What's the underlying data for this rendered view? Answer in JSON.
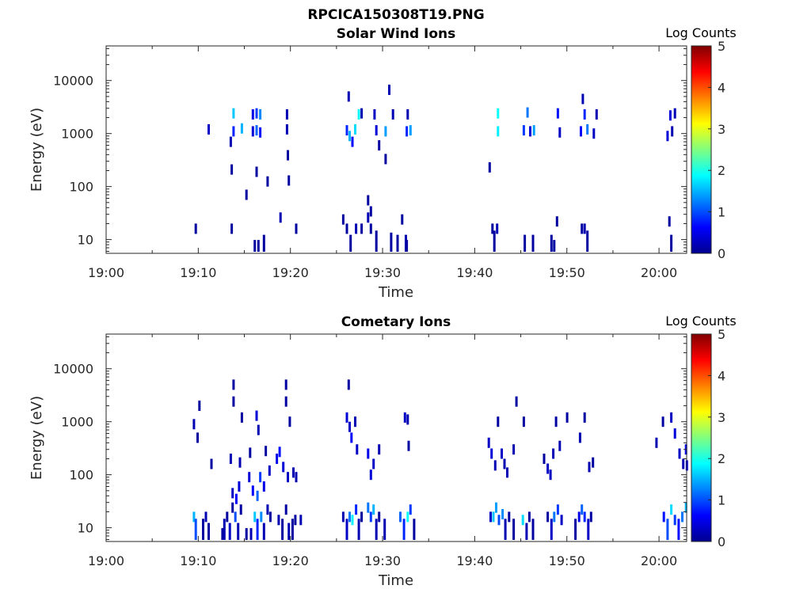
{
  "figure_title": "RPCICA150308T19.PNG",
  "colormap": [
    "#00008f",
    "#0000ff",
    "#0080ff",
    "#00ffff",
    "#80ff80",
    "#ffff00",
    "#ff8000",
    "#ff0000",
    "#800000"
  ],
  "chart_data": [
    {
      "type": "heatmap",
      "title": "Solar Wind Ions",
      "xlabel": "Time",
      "ylabel": "Energy (eV)",
      "yscale": "log",
      "xlim_minutes": [
        0,
        63
      ],
      "ylim": [
        5.5,
        45000
      ],
      "x_ticks": [
        {
          "label": "19:00",
          "m": 0
        },
        {
          "label": "19:10",
          "m": 10
        },
        {
          "label": "19:20",
          "m": 20
        },
        {
          "label": "19:30",
          "m": 30
        },
        {
          "label": "19:40",
          "m": 40
        },
        {
          "label": "19:50",
          "m": 50
        },
        {
          "label": "20:00",
          "m": 60
        }
      ],
      "y_ticks": [
        {
          "label": "10",
          "v": 10
        },
        {
          "label": "100",
          "v": 100
        },
        {
          "label": "1000",
          "v": 1000
        },
        {
          "label": "10000",
          "v": 10000
        }
      ],
      "colorbar": {
        "label": "Log Counts",
        "min": 0,
        "max": 5,
        "ticks": [
          "0",
          "1",
          "2",
          "3",
          "4",
          "5"
        ]
      },
      "cells": [
        [
          9.6,
          16,
          0.1
        ],
        [
          13.5,
          16,
          0.1
        ],
        [
          16,
          8,
          0.1
        ],
        [
          16.4,
          8,
          0.1
        ],
        [
          17,
          10,
          0.1
        ],
        [
          18.8,
          26,
          0.2
        ],
        [
          20.5,
          16,
          0.1
        ],
        [
          25.6,
          24,
          0.1
        ],
        [
          26,
          16,
          0.1
        ],
        [
          26.4,
          10,
          0.1
        ],
        [
          27,
          16,
          0.2
        ],
        [
          27.6,
          16,
          0.1
        ],
        [
          28.3,
          26,
          0.2
        ],
        [
          28.6,
          16,
          0.1
        ],
        [
          29.2,
          12,
          0.1
        ],
        [
          30.8,
          11,
          0.1
        ],
        [
          31.5,
          10,
          0.1
        ],
        [
          32,
          24,
          0.1
        ],
        [
          32.4,
          10,
          0.2
        ],
        [
          32.5,
          8,
          0.1
        ],
        [
          41.8,
          16,
          0.1
        ],
        [
          42,
          12,
          0.1
        ],
        [
          42.3,
          16,
          0.2
        ],
        [
          45.3,
          10,
          0.1
        ],
        [
          46.2,
          10,
          0.1
        ],
        [
          48.2,
          10,
          0.1
        ],
        [
          48.5,
          8,
          0.1
        ],
        [
          48.8,
          22,
          0.1
        ],
        [
          51.5,
          16,
          0.1
        ],
        [
          51.8,
          16,
          0.2
        ],
        [
          52.1,
          12,
          0.1
        ],
        [
          61,
          22,
          0.1
        ],
        [
          61.2,
          10,
          0.1
        ],
        [
          28.3,
          55,
          0.1
        ],
        [
          28.6,
          34,
          0.1
        ],
        [
          11,
          1200,
          0.3
        ],
        [
          13.4,
          700,
          0.2
        ],
        [
          13.7,
          1100,
          0.8
        ],
        [
          14.6,
          1250,
          1.5
        ],
        [
          15.8,
          1100,
          0.4
        ],
        [
          16.2,
          1150,
          1.1
        ],
        [
          16.6,
          1050,
          0.7
        ],
        [
          13.7,
          2400,
          1.6
        ],
        [
          15.8,
          2300,
          0.5
        ],
        [
          16.2,
          2400,
          0.9
        ],
        [
          16.6,
          2300,
          1.3
        ],
        [
          19.5,
          1200,
          0.2
        ],
        [
          19.5,
          2300,
          0.2
        ],
        [
          26,
          1150,
          0.8
        ],
        [
          26.3,
          900,
          1.5
        ],
        [
          26.6,
          700,
          0.6
        ],
        [
          26.9,
          1200,
          1.7
        ],
        [
          27.3,
          2300,
          1.9
        ],
        [
          29.2,
          1150,
          0.4
        ],
        [
          30.2,
          1100,
          1.4
        ],
        [
          31,
          2300,
          0.2
        ],
        [
          32.5,
          1100,
          0.8
        ],
        [
          32.9,
          1150,
          1.4
        ],
        [
          32.6,
          2300,
          0.2
        ],
        [
          26.2,
          5000,
          0.2
        ],
        [
          27.6,
          2400,
          0.2
        ],
        [
          30.6,
          6700,
          0.2
        ],
        [
          29,
          2300,
          0.3
        ],
        [
          42.4,
          1100,
          1.8
        ],
        [
          42.4,
          2400,
          1.9
        ],
        [
          45.2,
          1150,
          0.9
        ],
        [
          45.6,
          2500,
          1.2
        ],
        [
          45.9,
          1100,
          0.4
        ],
        [
          46.3,
          1150,
          1.4
        ],
        [
          48.9,
          2400,
          0.7
        ],
        [
          49.1,
          1050,
          0.3
        ],
        [
          51.4,
          1100,
          0.6
        ],
        [
          51.8,
          2300,
          0.8
        ],
        [
          52.1,
          1200,
          1.2
        ],
        [
          52.8,
          1000,
          0.3
        ],
        [
          53.1,
          2300,
          0.2
        ],
        [
          51.6,
          4500,
          0.2
        ],
        [
          60.8,
          900,
          0.4
        ],
        [
          61.3,
          1100,
          0.2
        ],
        [
          61.1,
          2200,
          0.4
        ],
        [
          61.6,
          2400,
          0.2
        ],
        [
          13.5,
          210,
          0.1
        ],
        [
          15.1,
          70,
          0.1
        ],
        [
          16.2,
          190,
          0.1
        ],
        [
          17.4,
          125,
          0.1
        ],
        [
          19.7,
          130,
          0.1
        ],
        [
          19.6,
          390,
          0.1
        ],
        [
          29.5,
          600,
          0.1
        ],
        [
          30.2,
          330,
          0.1
        ],
        [
          41.5,
          230,
          0.1
        ]
      ]
    },
    {
      "type": "heatmap",
      "title": "Cometary Ions",
      "xlabel": "Time",
      "ylabel": "Energy (eV)",
      "yscale": "log",
      "xlim_minutes": [
        0,
        63
      ],
      "ylim": [
        5.5,
        45000
      ],
      "x_ticks": [
        {
          "label": "19:00",
          "m": 0
        },
        {
          "label": "19:10",
          "m": 10
        },
        {
          "label": "19:20",
          "m": 20
        },
        {
          "label": "19:30",
          "m": 30
        },
        {
          "label": "19:40",
          "m": 40
        },
        {
          "label": "19:50",
          "m": 50
        },
        {
          "label": "20:00",
          "m": 60
        }
      ],
      "y_ticks": [
        {
          "label": "10",
          "v": 10
        },
        {
          "label": "100",
          "v": 100
        },
        {
          "label": "1000",
          "v": 1000
        },
        {
          "label": "10000",
          "v": 10000
        }
      ],
      "colorbar": {
        "label": "Log Counts",
        "min": 0,
        "max": 5,
        "ticks": [
          "0",
          "1",
          "2",
          "3",
          "4",
          "5"
        ]
      },
      "cells": [
        [
          9.4,
          16,
          1.5
        ],
        [
          9.6,
          12,
          1.0
        ],
        [
          10.4,
          12,
          0.1
        ],
        [
          10.7,
          16,
          0.2
        ],
        [
          11,
          10,
          0.1
        ],
        [
          12.5,
          8,
          0.1
        ],
        [
          12.7,
          12,
          0.2
        ],
        [
          13,
          16,
          0.1
        ],
        [
          13.3,
          10,
          0.3
        ],
        [
          13.6,
          24,
          0.1
        ],
        [
          13.9,
          16,
          1.0
        ],
        [
          14.2,
          10,
          0.2
        ],
        [
          14.5,
          22,
          0.1
        ],
        [
          15.1,
          8,
          0.1
        ],
        [
          15.6,
          8,
          0.2
        ],
        [
          16,
          16,
          1.6
        ],
        [
          16.3,
          12,
          0.8
        ],
        [
          16.7,
          16,
          1.3
        ],
        [
          17,
          10,
          0.2
        ],
        [
          17.4,
          22,
          0.2
        ],
        [
          17.7,
          16,
          0.1
        ],
        [
          18.6,
          14,
          0.2
        ],
        [
          19,
          12,
          0.1
        ],
        [
          19.4,
          22,
          0.1
        ],
        [
          19.7,
          10,
          0.2
        ],
        [
          20.1,
          12,
          0.1
        ],
        [
          20.4,
          14,
          0.1
        ],
        [
          21,
          14,
          0.2
        ],
        [
          25.6,
          16,
          0.2
        ],
        [
          26,
          12,
          0.3
        ],
        [
          26.3,
          16,
          1.2
        ],
        [
          26.6,
          14,
          1.8
        ],
        [
          27,
          22,
          0.8
        ],
        [
          27.3,
          12,
          0.2
        ],
        [
          27.6,
          16,
          0.1
        ],
        [
          28.3,
          24,
          1.2
        ],
        [
          28.6,
          16,
          0.9
        ],
        [
          28.9,
          22,
          1.5
        ],
        [
          29.2,
          12,
          0.2
        ],
        [
          29.5,
          16,
          0.1
        ],
        [
          30.1,
          12,
          0.2
        ],
        [
          31.8,
          16,
          1.1
        ],
        [
          32.2,
          12,
          0.8
        ],
        [
          32.6,
          16,
          1.9
        ],
        [
          32.9,
          22,
          0.9
        ],
        [
          33.3,
          12,
          0.1
        ],
        [
          41.6,
          16,
          0.3
        ],
        [
          41.9,
          16,
          1.6
        ],
        [
          42.2,
          24,
          1.4
        ],
        [
          42.5,
          14,
          1.0
        ],
        [
          42.9,
          18,
          1.3
        ],
        [
          43.2,
          12,
          0.2
        ],
        [
          43.6,
          16,
          0.1
        ],
        [
          44.1,
          12,
          0.1
        ],
        [
          45.1,
          14,
          1.7
        ],
        [
          45.5,
          10,
          0.2
        ],
        [
          45.8,
          16,
          0.1
        ],
        [
          46.2,
          12,
          0.1
        ],
        [
          47.8,
          16,
          0.1
        ],
        [
          48.2,
          12,
          0.3
        ],
        [
          48.5,
          16,
          1.2
        ],
        [
          48.9,
          22,
          0.9
        ],
        [
          49.3,
          14,
          0.3
        ],
        [
          50.8,
          12,
          0.1
        ],
        [
          51.2,
          16,
          0.5
        ],
        [
          51.5,
          22,
          1.1
        ],
        [
          51.8,
          16,
          0.8
        ],
        [
          52.2,
          12,
          0.3
        ],
        [
          52.5,
          16,
          0.1
        ],
        [
          60.4,
          16,
          0.7
        ],
        [
          60.8,
          12,
          1.0
        ],
        [
          61.2,
          22,
          1.7
        ],
        [
          61.6,
          14,
          0.9
        ],
        [
          62,
          12,
          0.7
        ],
        [
          62.4,
          16,
          1.2
        ],
        [
          62.8,
          24,
          1.5
        ],
        [
          13.6,
          45,
          0.3
        ],
        [
          14,
          35,
          0.6
        ],
        [
          14.3,
          60,
          0.4
        ],
        [
          15.4,
          90,
          0.4
        ],
        [
          15.8,
          50,
          0.6
        ],
        [
          16.3,
          40,
          1.1
        ],
        [
          16.6,
          90,
          0.9
        ],
        [
          17,
          60,
          0.5
        ],
        [
          17.6,
          120,
          0.3
        ],
        [
          18.4,
          200,
          0.5
        ],
        [
          18.7,
          270,
          0.7
        ],
        [
          19.1,
          140,
          0.4
        ],
        [
          19.6,
          90,
          0.3
        ],
        [
          20.2,
          110,
          0.2
        ],
        [
          20.5,
          90,
          0.2
        ],
        [
          13.4,
          200,
          0.2
        ],
        [
          14.4,
          170,
          0.2
        ],
        [
          15.5,
          260,
          0.1
        ],
        [
          16.4,
          700,
          0.2
        ],
        [
          17.2,
          280,
          0.1
        ],
        [
          9.4,
          900,
          0.2
        ],
        [
          9.8,
          500,
          0.1
        ],
        [
          10,
          2000,
          0.1
        ],
        [
          11.3,
          160,
          0.1
        ],
        [
          13.7,
          5000,
          0.1
        ],
        [
          13.7,
          2400,
          0.1
        ],
        [
          14.6,
          1200,
          0.1
        ],
        [
          16.2,
          1300,
          0.4
        ],
        [
          19.4,
          2400,
          0.1
        ],
        [
          19.4,
          5000,
          0.1
        ],
        [
          19.8,
          1000,
          0.1
        ],
        [
          26.2,
          5000,
          0.1
        ],
        [
          26,
          1200,
          0.4
        ],
        [
          26.3,
          800,
          0.3
        ],
        [
          26.5,
          500,
          0.6
        ],
        [
          26.9,
          1000,
          0.2
        ],
        [
          27.1,
          300,
          0.3
        ],
        [
          28.3,
          250,
          0.5
        ],
        [
          28.6,
          100,
          0.4
        ],
        [
          28.9,
          160,
          0.3
        ],
        [
          29.5,
          300,
          0.2
        ],
        [
          32.3,
          1200,
          0.3
        ],
        [
          32.6,
          1100,
          0.2
        ],
        [
          32.7,
          350,
          0.1
        ],
        [
          41.4,
          400,
          0.3
        ],
        [
          41.7,
          250,
          0.4
        ],
        [
          42.1,
          150,
          0.2
        ],
        [
          42.4,
          1000,
          0.1
        ],
        [
          42.8,
          250,
          0.3
        ],
        [
          43.1,
          160,
          0.2
        ],
        [
          43.4,
          110,
          0.2
        ],
        [
          44.1,
          300,
          0.2
        ],
        [
          44.4,
          2400,
          0.1
        ],
        [
          45.2,
          1000,
          0.1
        ],
        [
          47.4,
          200,
          0.1
        ],
        [
          47.8,
          130,
          0.3
        ],
        [
          48.1,
          100,
          0.3
        ],
        [
          48.4,
          250,
          0.2
        ],
        [
          48.7,
          1000,
          0.1
        ],
        [
          49.1,
          350,
          0.2
        ],
        [
          49.9,
          1200,
          0.1
        ],
        [
          51.3,
          500,
          0.2
        ],
        [
          51.8,
          1200,
          0.1
        ],
        [
          52.3,
          140,
          0.2
        ],
        [
          52.7,
          170,
          0.1
        ],
        [
          59.6,
          400,
          0.2
        ],
        [
          60.3,
          1000,
          0.1
        ],
        [
          61.2,
          1200,
          0.3
        ],
        [
          61.6,
          600,
          0.4
        ],
        [
          62.1,
          250,
          0.3
        ],
        [
          62.5,
          160,
          0.2
        ],
        [
          62.8,
          300,
          0.6
        ],
        [
          62.9,
          150,
          0.5
        ]
      ]
    }
  ]
}
